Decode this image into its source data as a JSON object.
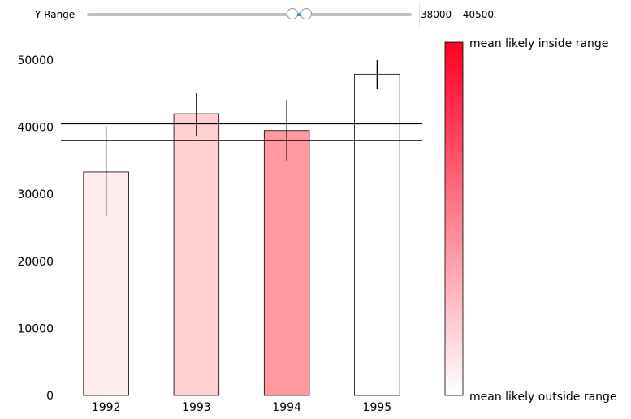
{
  "controls": {
    "slider_label": "Y Range",
    "range_text": "38000 – 40500",
    "slider_min": 0,
    "slider_max": 60000,
    "range_low": 38000,
    "range_high": 40500,
    "accent_color": "#1f8ce6"
  },
  "chart_data": {
    "type": "bar",
    "categories": [
      "1992",
      "1993",
      "1994",
      "1995"
    ],
    "values": [
      33300,
      42000,
      39500,
      47900
    ],
    "error_low": [
      26700,
      38600,
      35000,
      45700
    ],
    "error_high": [
      40000,
      45100,
      44100,
      50000
    ],
    "bar_colors": [
      "#ffeded",
      "#ffcfd1",
      "#ff999f",
      "#ffffff"
    ],
    "ylim": [
      0,
      50000
    ],
    "yticks": [
      0,
      10000,
      20000,
      30000,
      40000,
      50000
    ],
    "range_lines": [
      38000,
      40500
    ],
    "grid": false,
    "colorbar": {
      "top_label": "mean likely inside range",
      "bottom_label": "mean likely outside range",
      "top_color": "#ff0022",
      "bottom_color": "#ffffff",
      "placement": "right"
    }
  }
}
